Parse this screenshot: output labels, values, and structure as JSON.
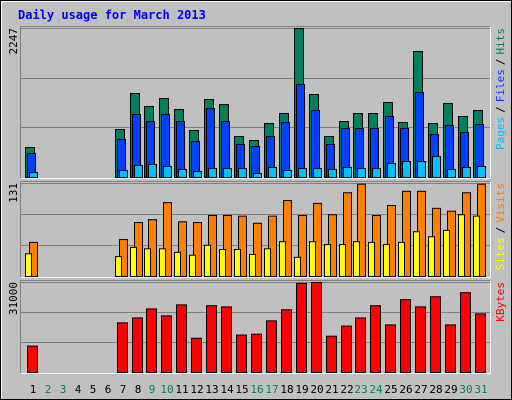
{
  "title": "Daily usage for March 2013",
  "chart_data": [
    {
      "type": "bar",
      "ylim": [
        0,
        2247
      ],
      "yticks": [
        2247
      ],
      "legend_separator": "/",
      "series": [
        {
          "name": "Pages",
          "color": "#00c0ff",
          "values": [
            75,
            0,
            0,
            0,
            0,
            0,
            106,
            181,
            196,
            166,
            121,
            90,
            136,
            136,
            136,
            60,
            151,
            106,
            136,
            136,
            121,
            151,
            136,
            136,
            211,
            241,
            241,
            317,
            121,
            151,
            166
          ]
        },
        {
          "name": "Files",
          "color": "#0040ff",
          "values": [
            362,
            0,
            0,
            0,
            0,
            0,
            573,
            950,
            844,
            950,
            844,
            543,
            1040,
            844,
            498,
            468,
            618,
            829,
            1402,
            1010,
            498,
            739,
            739,
            739,
            920,
            739,
            1282,
            648,
            784,
            679,
            799
          ]
        },
        {
          "name": "Hits",
          "color": "#00805c",
          "values": [
            452,
            0,
            0,
            0,
            0,
            0,
            724,
            1267,
            1071,
            1191,
            1025,
            709,
            1176,
            1101,
            618,
            558,
            814,
            965,
            2247,
            1252,
            618,
            844,
            965,
            965,
            1131,
            829,
            1900,
            814,
            1116,
            920,
            1010
          ]
        }
      ]
    },
    {
      "type": "bar",
      "ylim": [
        0,
        131
      ],
      "yticks": [
        131
      ],
      "legend_separator": "/",
      "series": [
        {
          "name": "Sites",
          "color": "#ffff00",
          "values": [
            32,
            0,
            0,
            0,
            0,
            0,
            28,
            41,
            39,
            39,
            34,
            30,
            44,
            38,
            38,
            31,
            39,
            49,
            27,
            49,
            45,
            45,
            49,
            48,
            45,
            48,
            63,
            56,
            65,
            87,
            85
          ]
        },
        {
          "name": "Visits",
          "color": "#ff8000",
          "values": [
            48,
            0,
            0,
            0,
            0,
            0,
            52,
            76,
            80,
            104,
            77,
            76,
            86,
            86,
            85,
            75,
            85,
            107,
            86,
            103,
            87,
            118,
            130,
            86,
            100,
            120,
            120,
            96,
            92,
            118,
            130
          ]
        }
      ]
    },
    {
      "type": "bar",
      "ylim": [
        0,
        31000
      ],
      "yticks": [
        31000
      ],
      "categories": [
        "1",
        "2",
        "3",
        "4",
        "5",
        "6",
        "7",
        "8",
        "9",
        "10",
        "11",
        "12",
        "13",
        "14",
        "15",
        "16",
        "17",
        "18",
        "19",
        "20",
        "21",
        "22",
        "23",
        "24",
        "25",
        "26",
        "27",
        "28",
        "29",
        "30",
        "31"
      ],
      "category_colors": [
        "#000000",
        "#00805c",
        "#00805c",
        "#000000",
        "#000000",
        "#000000",
        "#000000",
        "#000000",
        "#00805c",
        "#00805c",
        "#000000",
        "#000000",
        "#000000",
        "#000000",
        "#000000",
        "#00805c",
        "#00805c",
        "#000000",
        "#000000",
        "#000000",
        "#000000",
        "#000000",
        "#00805c",
        "#00805c",
        "#000000",
        "#000000",
        "#000000",
        "#000000",
        "#000000",
        "#00805c",
        "#00805c"
      ],
      "series": [
        {
          "name": "KBytes",
          "color": "#ff0000",
          "values": [
            9100,
            0,
            0,
            0,
            0,
            0,
            17100,
            18800,
            21900,
            19500,
            23300,
            11800,
            23000,
            22600,
            12900,
            13200,
            17800,
            21600,
            30700,
            31000,
            12500,
            16000,
            18800,
            23000,
            16400,
            25100,
            22600,
            26100,
            16400,
            27500,
            20200
          ]
        }
      ]
    }
  ]
}
